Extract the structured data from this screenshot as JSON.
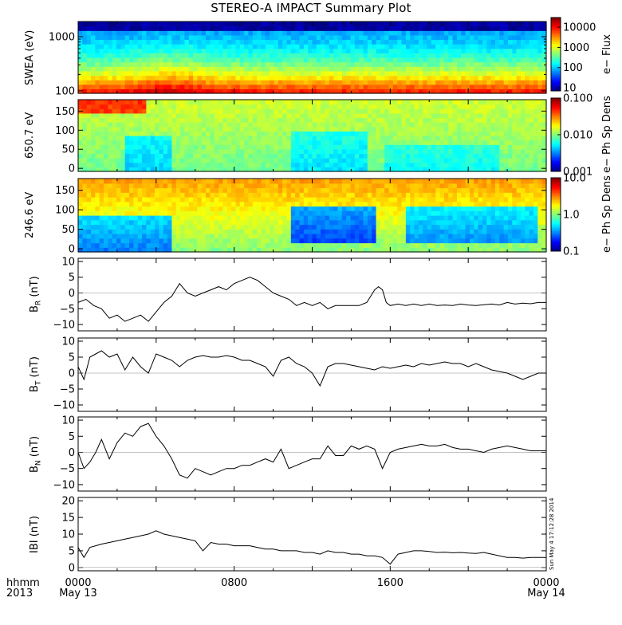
{
  "chart_data": {
    "title": "STEREO-A IMPACT Summary Plot",
    "x_axis": {
      "corner_labels": [
        "hhmm",
        "2013"
      ],
      "ticks": [
        {
          "hour": 0,
          "labels": [
            "0000",
            "May 13"
          ]
        },
        {
          "hour": 8,
          "labels": [
            "0800",
            ""
          ]
        },
        {
          "hour": 16,
          "labels": [
            "1600",
            ""
          ]
        },
        {
          "hour": 24,
          "labels": [
            "0000",
            "May 14"
          ]
        }
      ],
      "range_hours": [
        0,
        24
      ]
    },
    "timestamp": "Sun May  4 17:12:28 2014",
    "panels": [
      {
        "id": "swea",
        "type": "heatmap",
        "ylabel": "SWEA (eV)",
        "yscale": "log",
        "ylim": [
          90,
          1900
        ],
        "yticks": [
          {
            "v": 100,
            "t": "100"
          },
          {
            "v": 1000,
            "t": "1000"
          }
        ],
        "colorbar": {
          "label": "e− Flux",
          "scale": "log",
          "range": [
            7,
            30000
          ],
          "ticks": [
            {
              "v": 10,
              "t": "10"
            },
            {
              "v": 100,
              "t": "100"
            },
            {
              "v": 1000,
              "t": "1000"
            },
            {
              "v": 10000,
              "t": "10000"
            }
          ]
        }
      },
      {
        "id": "pad650",
        "type": "heatmap",
        "ylabel": "650.7 eV",
        "yscale": "linear",
        "ylim": [
          -8,
          180
        ],
        "yticks": [
          {
            "v": 0,
            "t": "0"
          },
          {
            "v": 50,
            "t": "50"
          },
          {
            "v": 100,
            "t": "100"
          },
          {
            "v": 150,
            "t": "150"
          }
        ],
        "colorbar": {
          "label": "e− Ph Sp Dens",
          "scale": "log",
          "range": [
            0.001,
            0.1
          ],
          "ticks": [
            {
              "v": 0.001,
              "t": "0.001"
            },
            {
              "v": 0.01,
              "t": "0.010"
            },
            {
              "v": 0.1,
              "t": "0.100"
            }
          ]
        }
      },
      {
        "id": "pad246",
        "type": "heatmap",
        "ylabel": "246.6 eV",
        "yscale": "linear",
        "ylim": [
          -8,
          180
        ],
        "yticks": [
          {
            "v": 0,
            "t": "0"
          },
          {
            "v": 50,
            "t": "50"
          },
          {
            "v": 100,
            "t": "100"
          },
          {
            "v": 150,
            "t": "150"
          }
        ],
        "colorbar": {
          "label": "e− Ph Sp Dens",
          "scale": "log",
          "range": [
            0.1,
            10
          ],
          "ticks": [
            {
              "v": 0.1,
              "t": "0.1"
            },
            {
              "v": 1,
              "t": "1.0"
            },
            {
              "v": 10,
              "t": "10.0"
            }
          ]
        }
      },
      {
        "id": "br",
        "type": "line",
        "ylabel": "B",
        "ylabel_sub": "R",
        "ylabel_unit": "(nT)",
        "ylim": [
          -12,
          11
        ],
        "yticks": [
          {
            "v": -10,
            "t": "−10"
          },
          {
            "v": -5,
            "t": "−5"
          },
          {
            "v": 0,
            "t": "0"
          },
          {
            "v": 5,
            "t": "5"
          },
          {
            "v": 10,
            "t": "10"
          }
        ],
        "x": [
          0,
          0.4,
          0.8,
          1.2,
          1.6,
          2,
          2.4,
          2.8,
          3.2,
          3.6,
          4,
          4.4,
          4.8,
          5,
          5.2,
          5.6,
          6,
          6.4,
          6.8,
          7.2,
          7.6,
          8,
          8.4,
          8.8,
          9.2,
          9.6,
          10,
          10.4,
          10.8,
          11.2,
          11.6,
          12,
          12.4,
          12.8,
          13.2,
          13.6,
          14,
          14.4,
          14.8,
          15.2,
          15.4,
          15.6,
          15.8,
          16,
          16.4,
          16.8,
          17.2,
          17.6,
          18,
          18.4,
          18.8,
          19.2,
          19.6,
          20,
          20.4,
          20.8,
          21.2,
          21.6,
          22,
          22.4,
          22.8,
          23.2,
          23.6,
          24
        ],
        "y": [
          -3,
          -2,
          -4,
          -5,
          -8,
          -7,
          -9,
          -8,
          -7,
          -9,
          -6,
          -3,
          -1,
          1,
          3,
          0,
          -1,
          0,
          1,
          2,
          1,
          3,
          4,
          5,
          4,
          2,
          0,
          -1,
          -2,
          -4,
          -3,
          -4,
          -3,
          -5,
          -4,
          -4,
          -4,
          -4,
          -3,
          1,
          2,
          1,
          -3,
          -4,
          -3.5,
          -4,
          -3.5,
          -4,
          -3.5,
          -4,
          -3.8,
          -4,
          -3.5,
          -3.8,
          -4,
          -3.7,
          -3.5,
          -3.8,
          -3,
          -3.5,
          -3.2,
          -3.4,
          -3,
          -3
        ]
      },
      {
        "id": "bt",
        "type": "line",
        "ylabel": "B",
        "ylabel_sub": "T",
        "ylabel_unit": "(nT)",
        "ylim": [
          -12,
          11
        ],
        "yticks": [
          {
            "v": -10,
            "t": "−10"
          },
          {
            "v": -5,
            "t": "−5"
          },
          {
            "v": 0,
            "t": "0"
          },
          {
            "v": 5,
            "t": "5"
          },
          {
            "v": 10,
            "t": "10"
          }
        ],
        "x": [
          0,
          0.3,
          0.6,
          0.9,
          1.2,
          1.6,
          2,
          2.4,
          2.8,
          3.2,
          3.6,
          4,
          4.4,
          4.8,
          5.2,
          5.6,
          6,
          6.4,
          6.8,
          7.2,
          7.6,
          8,
          8.4,
          8.8,
          9.2,
          9.6,
          10,
          10.4,
          10.8,
          11.2,
          11.6,
          12,
          12.4,
          12.8,
          13.2,
          13.6,
          14,
          14.4,
          14.8,
          15.2,
          15.6,
          16,
          16.4,
          16.8,
          17.2,
          17.6,
          18,
          18.4,
          18.8,
          19.2,
          19.6,
          20,
          20.4,
          20.8,
          21.2,
          21.6,
          22,
          22.4,
          22.8,
          23.2,
          23.6,
          24
        ],
        "y": [
          2,
          -2,
          5,
          6,
          7,
          5,
          6,
          1,
          5,
          2,
          0,
          6,
          5,
          4,
          2,
          4,
          5,
          5.5,
          5,
          5,
          5.5,
          5,
          4,
          4,
          3,
          2,
          -1,
          4,
          5,
          3,
          2,
          0,
          -4,
          2,
          3,
          3,
          2.5,
          2,
          1.5,
          1,
          2,
          1.5,
          2,
          2.5,
          2,
          3,
          2.5,
          3,
          3.5,
          3,
          3,
          2,
          3,
          2,
          1,
          0.5,
          0,
          -1,
          -2,
          -1,
          0,
          0
        ]
      },
      {
        "id": "bn",
        "type": "line",
        "ylabel": "B",
        "ylabel_sub": "N",
        "ylabel_unit": "(nT)",
        "ylim": [
          -12,
          11
        ],
        "yticks": [
          {
            "v": -10,
            "t": "−10"
          },
          {
            "v": -5,
            "t": "−5"
          },
          {
            "v": 0,
            "t": "0"
          },
          {
            "v": 5,
            "t": "5"
          },
          {
            "v": 10,
            "t": "10"
          }
        ],
        "x": [
          0,
          0.3,
          0.6,
          0.9,
          1.2,
          1.6,
          2,
          2.4,
          2.8,
          3.2,
          3.6,
          4,
          4.4,
          4.8,
          5.2,
          5.6,
          6,
          6.4,
          6.8,
          7.2,
          7.6,
          8,
          8.4,
          8.8,
          9.2,
          9.6,
          10,
          10.4,
          10.8,
          11.2,
          11.6,
          12,
          12.4,
          12.8,
          13.2,
          13.6,
          14,
          14.4,
          14.8,
          15.2,
          15.6,
          16,
          16.4,
          16.8,
          17.2,
          17.6,
          18,
          18.4,
          18.8,
          19.2,
          19.6,
          20,
          20.4,
          20.8,
          21.2,
          21.6,
          22,
          22.4,
          22.8,
          23.2,
          23.6,
          24
        ],
        "y": [
          0,
          -5,
          -3,
          0,
          4,
          -2,
          3,
          6,
          5,
          8,
          9,
          5,
          2,
          -2,
          -7,
          -8,
          -5,
          -6,
          -7,
          -6,
          -5,
          -5,
          -4,
          -4,
          -3,
          -2,
          -3,
          1,
          -5,
          -4,
          -3,
          -2,
          -2,
          2,
          -1,
          -1,
          2,
          1,
          2,
          1,
          -5,
          0,
          1,
          1.5,
          2,
          2.5,
          2,
          2,
          2.5,
          1.5,
          1,
          1,
          0.5,
          0,
          1,
          1.5,
          2,
          1.5,
          1,
          0.5,
          0.5,
          0.5
        ]
      },
      {
        "id": "bmag",
        "type": "line",
        "ylabel": "IBI",
        "ylabel_unit": "(nT)",
        "ylim": [
          -1,
          21
        ],
        "yticks": [
          {
            "v": 0,
            "t": "0"
          },
          {
            "v": 5,
            "t": "5"
          },
          {
            "v": 10,
            "t": "10"
          },
          {
            "v": 15,
            "t": "15"
          },
          {
            "v": 20,
            "t": "20"
          }
        ],
        "x": [
          0,
          0.3,
          0.6,
          0.9,
          1.2,
          1.6,
          2,
          2.4,
          2.8,
          3.2,
          3.6,
          4,
          4.4,
          4.8,
          5.2,
          5.6,
          6,
          6.4,
          6.8,
          7.2,
          7.6,
          8,
          8.4,
          8.8,
          9.2,
          9.6,
          10,
          10.4,
          10.8,
          11.2,
          11.6,
          12,
          12.4,
          12.8,
          13.2,
          13.6,
          14,
          14.4,
          14.8,
          15.2,
          15.6,
          16,
          16.4,
          16.8,
          17.2,
          17.6,
          18,
          18.4,
          18.8,
          19.2,
          19.6,
          20,
          20.4,
          20.8,
          21.2,
          21.6,
          22,
          22.4,
          22.8,
          23.2,
          23.6,
          24
        ],
        "y": [
          6,
          3,
          6,
          6.5,
          7,
          7.5,
          8,
          8.5,
          9,
          9.5,
          10,
          11,
          10,
          9.5,
          9,
          8.5,
          8,
          5,
          7.5,
          7,
          7,
          6.5,
          6.5,
          6.5,
          6,
          5.5,
          5.5,
          5,
          5,
          5,
          4.5,
          4.5,
          4,
          5,
          4.5,
          4.5,
          4,
          4,
          3.5,
          3.5,
          3,
          1,
          4,
          4.5,
          5,
          5,
          4.8,
          4.5,
          4.6,
          4.4,
          4.5,
          4.3,
          4.2,
          4.5,
          4,
          3.5,
          3,
          3,
          2.8,
          3,
          3,
          3
        ]
      }
    ]
  }
}
